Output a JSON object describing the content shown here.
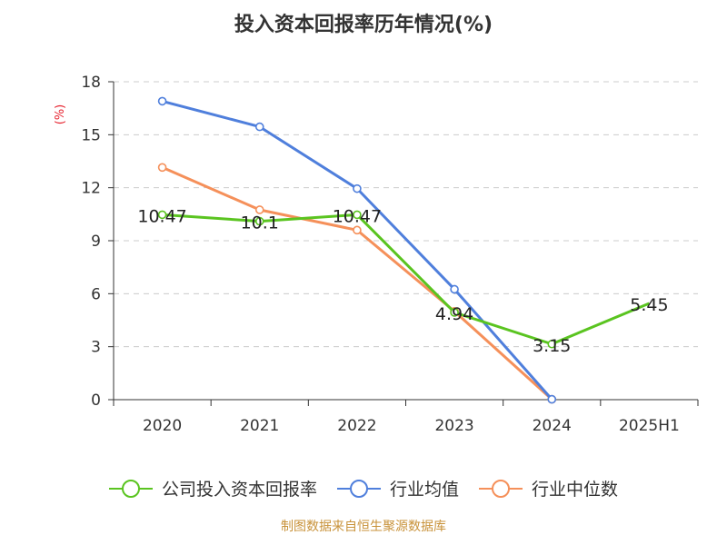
{
  "chart_data": {
    "type": "line",
    "title": "投入资本回报率历年情况(%)",
    "ylabel": "(%)",
    "xlabel": "",
    "categories": [
      "2020",
      "2021",
      "2022",
      "2023",
      "2024",
      "2025H1"
    ],
    "ylim": [
      0,
      18
    ],
    "yticks": [
      0,
      3,
      6,
      9,
      12,
      15,
      18
    ],
    "grid": true,
    "legend_position": "bottom",
    "series": [
      {
        "name": "公司投入资本回报率",
        "color": "#5ac420",
        "values": [
          10.47,
          10.1,
          10.47,
          4.94,
          3.15,
          5.45
        ],
        "labels": [
          "10.47",
          "10.1",
          "10.47",
          "4.94",
          "3.15",
          "5.45"
        ]
      },
      {
        "name": "行业均值",
        "color": "#4f7fdc",
        "values": [
          16.9,
          15.45,
          11.95,
          6.25,
          0.02,
          null
        ]
      },
      {
        "name": "行业中位数",
        "color": "#f5905a",
        "values": [
          13.15,
          10.75,
          9.6,
          5.0,
          0.02,
          null
        ]
      }
    ]
  },
  "footer": {
    "source": "制图数据来自恒生聚源数据库"
  }
}
